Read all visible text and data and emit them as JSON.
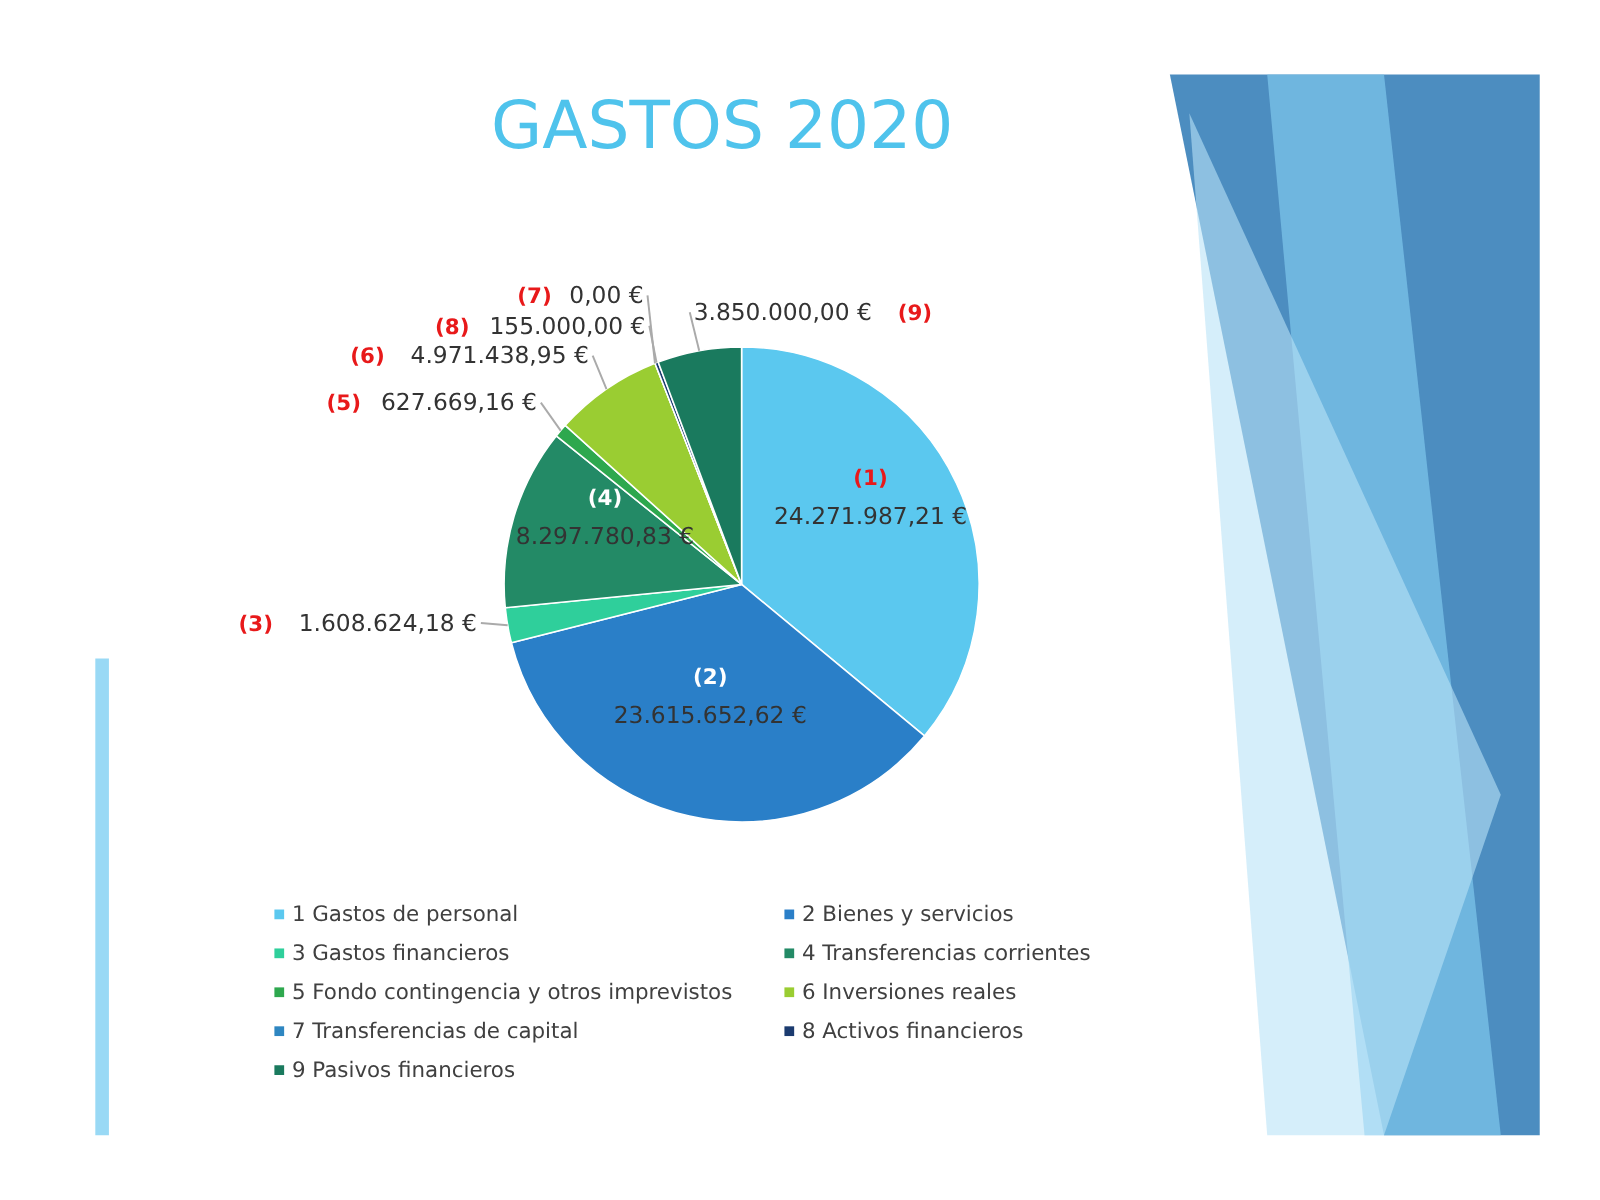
{
  "chart_data": {
    "type": "pie",
    "title": "GASTOS 2020",
    "categories": [
      "1 Gastos de personal",
      "2 Bienes y servicios",
      "3 Gastos financieros",
      "4 Transferencias corrientes",
      "5 Fondo contingencia y otros imprevistos",
      "6 Inversiones reales",
      "7 Transferencias de capital",
      "8 Activos financieros",
      "9 Pasivos financieros"
    ],
    "values": [
      24271987.21,
      23615652.62,
      1608624.18,
      8297780.83,
      627669.16,
      4971438.95,
      0,
      155000,
      3850000
    ],
    "value_labels": [
      "24.271.987,21 €",
      "23.615.652,62 €",
      "1.608.624,18 €",
      "8.297.780,83 €",
      "627.669,16 €",
      "4.971.438,95 €",
      "0,00 €",
      "155.000,00 €",
      "3.850.000,00 €"
    ],
    "colors": [
      "#5bc8ef",
      "#2a7fc8",
      "#2fcf9b",
      "#238a66",
      "#2ea84e",
      "#9acd32",
      "#2e86c1",
      "#1b3b6f",
      "#1a7a5e"
    ],
    "annotations": [
      "(1)",
      "(2)",
      "(3)",
      "(4)",
      "(5)",
      "(6)",
      "(7)",
      "(8)",
      "(9)"
    ],
    "legend": "bottom"
  }
}
